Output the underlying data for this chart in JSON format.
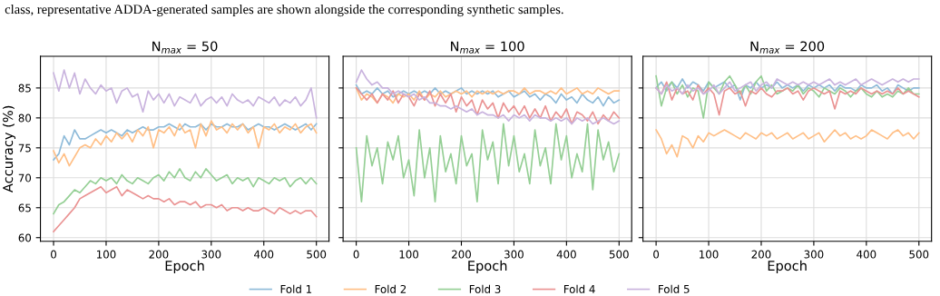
{
  "chart_data": [
    {
      "type": "line",
      "title": "N$_{max}$ = 50",
      "xlabel": "Epoch",
      "ylabel": "Accuracy (%)",
      "xlim": [
        -25,
        524
      ],
      "ylim": [
        59.4,
        90.3
      ],
      "xticks": [
        0,
        100,
        200,
        300,
        400,
        500
      ],
      "yticks": [
        60,
        65,
        70,
        75,
        80,
        85
      ],
      "grid": true,
      "legend": "bottom",
      "annotations": [
        "class, representative ADDA-generated samples are shown alongside the corresponding synthetic samples."
      ],
      "x": [
        0,
        10,
        20,
        30,
        40,
        50,
        60,
        70,
        80,
        90,
        100,
        110,
        120,
        130,
        140,
        150,
        160,
        170,
        180,
        190,
        200,
        210,
        220,
        230,
        240,
        250,
        260,
        270,
        280,
        290,
        300,
        310,
        320,
        330,
        340,
        350,
        360,
        370,
        380,
        390,
        400,
        410,
        420,
        430,
        440,
        450,
        460,
        470,
        480,
        490,
        500
      ],
      "series": [
        {
          "name": "Fold 1",
          "color": "#8fbbd9",
          "values": [
            73,
            74,
            77,
            75.5,
            78,
            76.5,
            76.5,
            77,
            77.5,
            78,
            77.5,
            78,
            77.5,
            77,
            78,
            77.5,
            78,
            78.5,
            78,
            78,
            78.5,
            78.5,
            79,
            78.5,
            78,
            79,
            78.5,
            78.5,
            79,
            78,
            79,
            78.5,
            78.5,
            79,
            78.5,
            78.5,
            79,
            78,
            78.5,
            79,
            78.5,
            78.5,
            78,
            78.5,
            79,
            78.5,
            78,
            78.5,
            79,
            78,
            79
          ]
        },
        {
          "name": "Fold 2",
          "color": "#ffbf86",
          "values": [
            74.5,
            72.5,
            74,
            72,
            73.5,
            75,
            75.5,
            75,
            76.5,
            75.5,
            77,
            76,
            77.5,
            76.5,
            77.5,
            76,
            78,
            77,
            78.5,
            75,
            78,
            77.5,
            78.5,
            77,
            79,
            77.5,
            78,
            75,
            79,
            77,
            79.5,
            78,
            78.5,
            77.5,
            79,
            78,
            79,
            77.5,
            78.5,
            75,
            78.5,
            78,
            79,
            77.5,
            78.5,
            78,
            79,
            77.5,
            78.5,
            79,
            77.5
          ]
        },
        {
          "name": "Fold 3",
          "color": "#95cf95",
          "values": [
            64,
            65.5,
            66,
            67,
            68,
            67.5,
            68.5,
            69.5,
            69,
            70,
            69.5,
            70,
            69,
            70.5,
            69.5,
            69,
            70,
            69.5,
            69,
            70,
            70.5,
            69.5,
            71,
            70,
            71.5,
            70,
            69.5,
            71,
            70,
            71.5,
            70.5,
            69.5,
            70,
            70.5,
            69,
            70,
            69.5,
            70,
            68.5,
            70,
            69.5,
            69,
            70,
            69.5,
            70,
            68.5,
            69.5,
            70,
            69,
            70,
            69
          ]
        },
        {
          "name": "Fold 4",
          "color": "#ea9393",
          "values": [
            61,
            62,
            63,
            64,
            65,
            66.5,
            67,
            67.5,
            68,
            68.5,
            67.5,
            68,
            68.5,
            67,
            68,
            67.5,
            67,
            66.5,
            67,
            66.5,
            66.5,
            66,
            66.5,
            65.5,
            66,
            66,
            65.5,
            66,
            65,
            65.5,
            65.5,
            65,
            65.5,
            64.5,
            65,
            65,
            64.5,
            65,
            64.5,
            64.5,
            65,
            64.5,
            64,
            65,
            64.5,
            64,
            64.5,
            64,
            64.5,
            64.5,
            63.5
          ]
        },
        {
          "name": "Fold 5",
          "color": "#c9b3de",
          "values": [
            87.5,
            84.5,
            88,
            85,
            87.5,
            84,
            86.5,
            85,
            84,
            85.5,
            84.5,
            85,
            82.5,
            84.5,
            85,
            83.5,
            84,
            81,
            84.5,
            83,
            84,
            82.5,
            84,
            82,
            83.5,
            83,
            82.5,
            84,
            82,
            83,
            83.5,
            82.5,
            83.5,
            82,
            84,
            83,
            82.5,
            83,
            82,
            83.5,
            83,
            82.5,
            83.5,
            82,
            83,
            82.5,
            83.5,
            82,
            83,
            85,
            80
          ]
        }
      ]
    },
    {
      "type": "line",
      "title": "N$_{max}$ = 100",
      "xlabel": "Epoch",
      "xlim": [
        -25,
        524
      ],
      "ylim": [
        59.4,
        90.3
      ],
      "xticks": [
        0,
        100,
        200,
        300,
        400,
        500
      ],
      "yticks": [
        60,
        65,
        70,
        75,
        80,
        85
      ],
      "grid": true,
      "tick_labels": "x",
      "x": [
        0,
        10,
        20,
        30,
        40,
        50,
        60,
        70,
        80,
        90,
        100,
        110,
        120,
        130,
        140,
        150,
        160,
        170,
        180,
        190,
        200,
        210,
        220,
        230,
        240,
        250,
        260,
        270,
        280,
        290,
        300,
        310,
        320,
        330,
        340,
        350,
        360,
        370,
        380,
        390,
        400,
        410,
        420,
        430,
        440,
        450,
        460,
        470,
        480,
        490,
        500
      ],
      "series": [
        {
          "color": "#8fbbd9",
          "values": [
            85.5,
            84,
            84.5,
            84,
            85,
            84,
            84.5,
            83.5,
            84,
            84.5,
            84,
            84.5,
            84,
            84.5,
            84,
            85,
            84,
            84.5,
            84,
            84.5,
            85,
            84,
            84.5,
            84,
            84.5,
            84,
            84.5,
            83.5,
            84,
            84.5,
            83.5,
            84,
            84.5,
            83.5,
            84,
            83,
            84,
            83.5,
            82.5,
            84,
            83,
            83.5,
            82.5,
            84,
            83,
            82.5,
            83.5,
            82,
            83.5,
            82.5,
            83
          ]
        },
        {
          "color": "#ffbf86",
          "values": [
            85,
            83,
            84,
            83.5,
            82.5,
            84,
            83.5,
            82.5,
            84,
            83.5,
            84,
            83,
            84.5,
            83,
            84,
            83.5,
            84.5,
            83.5,
            84,
            84.5,
            84,
            84.5,
            83.5,
            84.5,
            84,
            84.5,
            84,
            84.5,
            84,
            84.5,
            84.5,
            84,
            85,
            84,
            84.5,
            84.5,
            84,
            84.5,
            84,
            85,
            84,
            84.5,
            85,
            84,
            84.5,
            84,
            85,
            84.5,
            84,
            84.5,
            84.5
          ]
        },
        {
          "color": "#95cf95",
          "values": [
            75,
            66,
            77,
            72,
            75,
            69,
            76,
            73,
            77,
            70,
            73,
            67,
            78,
            70,
            75,
            66,
            77,
            71,
            74,
            69,
            77,
            72,
            74,
            66,
            78,
            73,
            76,
            69,
            79,
            72,
            77,
            71,
            74,
            69,
            78,
            72,
            75,
            69,
            79,
            73,
            77,
            70,
            74,
            71,
            79,
            68,
            78,
            73,
            76,
            71,
            74
          ]
        },
        {
          "color": "#ea9393",
          "values": [
            85,
            84,
            83,
            84,
            82.5,
            84,
            83,
            84.5,
            82.5,
            84,
            83.5,
            82,
            84,
            83,
            84.5,
            82,
            84,
            82.5,
            84,
            81,
            83.5,
            82,
            83,
            80.5,
            83,
            81.5,
            82.5,
            80,
            82.5,
            81,
            82,
            80.5,
            82,
            80,
            81.5,
            80,
            82,
            79.5,
            81,
            80,
            81.5,
            79,
            81,
            80.5,
            79.5,
            81,
            79,
            80.5,
            79.5,
            81,
            80
          ]
        },
        {
          "color": "#c9b3de",
          "values": [
            86,
            88,
            86.5,
            85.5,
            86,
            85,
            85,
            84,
            84.5,
            84,
            83.5,
            84,
            83,
            83.5,
            82.5,
            82.5,
            82,
            82,
            81.5,
            82,
            81.5,
            81,
            81.5,
            80.5,
            81,
            80.5,
            80.5,
            80,
            80.5,
            79.5,
            80.5,
            80,
            80.5,
            79.5,
            80.5,
            80,
            80,
            79.5,
            80,
            79.5,
            80,
            79,
            80,
            79.5,
            80,
            79,
            79.5,
            80,
            79.5,
            79,
            79.5
          ]
        }
      ]
    },
    {
      "type": "line",
      "title": "N$_{max}$ = 200",
      "xlabel": "Epoch",
      "xlim": [
        -25,
        524
      ],
      "ylim": [
        59.4,
        90.3
      ],
      "xticks": [
        0,
        100,
        200,
        300,
        400,
        500
      ],
      "yticks": [
        60,
        65,
        70,
        75,
        80,
        85
      ],
      "grid": true,
      "tick_labels": "x",
      "x": [
        0,
        10,
        20,
        30,
        40,
        50,
        60,
        70,
        80,
        90,
        100,
        110,
        120,
        130,
        140,
        150,
        160,
        170,
        180,
        190,
        200,
        210,
        220,
        230,
        240,
        250,
        260,
        270,
        280,
        290,
        300,
        310,
        320,
        330,
        340,
        350,
        360,
        370,
        380,
        390,
        400,
        410,
        420,
        430,
        440,
        450,
        460,
        470,
        480,
        490,
        500
      ],
      "series": [
        {
          "color": "#8fbbd9",
          "values": [
            85,
            86,
            84.5,
            86,
            85,
            86.5,
            85,
            86,
            85.5,
            84.5,
            86,
            85,
            85.5,
            86,
            85,
            85.5,
            83,
            85.5,
            85,
            86,
            85,
            85.5,
            85,
            86,
            85,
            85.5,
            85,
            85.5,
            84.5,
            85.5,
            85,
            85.5,
            85,
            85.5,
            84.5,
            85.5,
            85,
            85,
            84.5,
            85.5,
            85,
            85,
            85.5,
            84.5,
            85,
            84,
            85.5,
            85,
            84.5,
            85,
            85
          ]
        },
        {
          "color": "#ffbf86",
          "values": [
            78,
            76.5,
            74,
            75.5,
            73.5,
            77,
            76.5,
            75,
            77,
            76,
            77.5,
            77,
            77.5,
            78,
            77.5,
            77,
            76.5,
            77.5,
            77,
            76.5,
            77.5,
            77,
            77.5,
            76.5,
            77,
            77.5,
            76.5,
            77,
            77.5,
            76.5,
            77,
            77.5,
            76,
            77,
            78,
            77,
            77.5,
            76.5,
            77,
            76.5,
            77,
            78,
            77.5,
            77,
            76.5,
            77.5,
            78,
            77,
            77.5,
            76.5,
            77.5
          ]
        },
        {
          "color": "#95cf95",
          "values": [
            87,
            82,
            85,
            86,
            84,
            85.5,
            83.5,
            85,
            84.5,
            80,
            86,
            85,
            84,
            86,
            87,
            85.5,
            84,
            85.5,
            84,
            86,
            87,
            84.5,
            85.5,
            84,
            84.5,
            85,
            84.5,
            85.5,
            84,
            85,
            84.5,
            83.5,
            85,
            84.5,
            84,
            85,
            84.5,
            83.5,
            84.5,
            85,
            84,
            83.5,
            84.5,
            83.5,
            84,
            83.5,
            84.5,
            84,
            85,
            84,
            84
          ]
        },
        {
          "color": "#ea9393",
          "values": [
            85,
            84,
            86,
            83,
            85,
            84,
            84.5,
            83,
            85.5,
            84,
            85,
            84,
            80.5,
            84.5,
            85,
            84,
            84.5,
            82,
            84.5,
            84,
            85,
            84,
            83.5,
            84.5,
            84.5,
            85,
            84,
            84.5,
            83,
            84.5,
            85,
            84.5,
            84,
            84.5,
            81.5,
            84.5,
            84,
            84.5,
            84,
            85,
            84.5,
            84,
            84.5,
            84,
            84.5,
            84,
            85,
            84,
            84.5,
            84,
            83.5
          ]
        },
        {
          "color": "#c9b3de",
          "values": [
            85,
            84,
            85.5,
            84.5,
            85,
            84,
            85.5,
            84.5,
            85,
            84,
            84.5,
            85.5,
            84,
            85,
            86,
            84.5,
            85,
            85.5,
            86,
            84.5,
            85.5,
            86,
            85,
            86.5,
            86,
            85.5,
            86,
            85.5,
            86,
            85.5,
            86,
            85.5,
            86,
            86.5,
            85.5,
            86,
            85.5,
            86,
            86.5,
            85.5,
            86,
            86.5,
            86,
            85.5,
            86,
            86.5,
            86,
            86.5,
            86,
            86.5,
            86.5
          ]
        }
      ]
    }
  ]
}
